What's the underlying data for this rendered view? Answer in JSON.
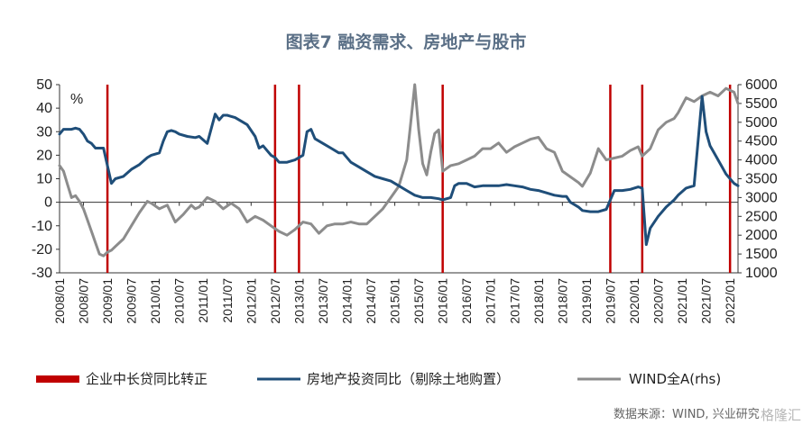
{
  "chart_data": {
    "type": "line",
    "title": "图表7  融资需求、房地产与股市",
    "y_unit": "%",
    "ylim_left": [
      -30,
      50
    ],
    "yticks_left": [
      -30,
      -20,
      -10,
      0,
      10,
      20,
      30,
      40,
      50
    ],
    "ylim_right": [
      1000,
      6000
    ],
    "yticks_right": [
      1000,
      1500,
      2000,
      2500,
      3000,
      3500,
      4000,
      4500,
      5000,
      5500,
      6000
    ],
    "x_ticks": [
      "2008/01",
      "2008/07",
      "2009/01",
      "2009/07",
      "2010/01",
      "2010/07",
      "2011/01",
      "2011/07",
      "2012/01",
      "2012/07",
      "2013/01",
      "2013/07",
      "2014/01",
      "2014/07",
      "2015/01",
      "2015/07",
      "2016/01",
      "2016/07",
      "2017/01",
      "2017/07",
      "2018/01",
      "2018/07",
      "2019/01",
      "2019/07",
      "2020/01",
      "2020/07",
      "2021/01",
      "2021/07",
      "2022/01"
    ],
    "grid": false,
    "legend_position": "bottom",
    "turn_positive_markers": {
      "name": "企业中长贷同比转正",
      "color": "#c00000",
      "dates": [
        "2009/01",
        "2012/07",
        "2013/01",
        "2016/01",
        "2019/07",
        "2020/03",
        "2022/01"
      ]
    },
    "series": [
      {
        "name": "房地产投资同比（剔除土地购置）",
        "axis": "left",
        "color": "#1f4e79",
        "points": [
          [
            "2008/01",
            29
          ],
          [
            "2008/02",
            31
          ],
          [
            "2008/03",
            31
          ],
          [
            "2008/04",
            31
          ],
          [
            "2008/05",
            31.5
          ],
          [
            "2008/06",
            31
          ],
          [
            "2008/07",
            29
          ],
          [
            "2008/08",
            26
          ],
          [
            "2008/09",
            25
          ],
          [
            "2008/10",
            23
          ],
          [
            "2008/11",
            23
          ],
          [
            "2008/12",
            23
          ],
          [
            "2009/02",
            8
          ],
          [
            "2009/03",
            10
          ],
          [
            "2009/05",
            11
          ],
          [
            "2009/07",
            14
          ],
          [
            "2009/09",
            16
          ],
          [
            "2009/11",
            19
          ],
          [
            "2009/12",
            20
          ],
          [
            "2010/02",
            21
          ],
          [
            "2010/03",
            26
          ],
          [
            "2010/04",
            30
          ],
          [
            "2010/05",
            30.5
          ],
          [
            "2010/06",
            30
          ],
          [
            "2010/07",
            29
          ],
          [
            "2010/09",
            28
          ],
          [
            "2010/11",
            27.5
          ],
          [
            "2010/12",
            28
          ],
          [
            "2011/02",
            25
          ],
          [
            "2011/04",
            37.5
          ],
          [
            "2011/05",
            35
          ],
          [
            "2011/06",
            37
          ],
          [
            "2011/07",
            37
          ],
          [
            "2011/09",
            36
          ],
          [
            "2011/11",
            34
          ],
          [
            "2011/12",
            33
          ],
          [
            "2012/02",
            28
          ],
          [
            "2012/03",
            23
          ],
          [
            "2012/04",
            24
          ],
          [
            "2012/05",
            22
          ],
          [
            "2012/06",
            20
          ],
          [
            "2012/07",
            19
          ],
          [
            "2012/08",
            17
          ],
          [
            "2012/10",
            17
          ],
          [
            "2012/12",
            18
          ],
          [
            "2013/02",
            20
          ],
          [
            "2013/03",
            30
          ],
          [
            "2013/04",
            31
          ],
          [
            "2013/05",
            27
          ],
          [
            "2013/07",
            25
          ],
          [
            "2013/09",
            23
          ],
          [
            "2013/11",
            21
          ],
          [
            "2013/12",
            21
          ],
          [
            "2014/02",
            17
          ],
          [
            "2014/04",
            15
          ],
          [
            "2014/06",
            13
          ],
          [
            "2014/08",
            11
          ],
          [
            "2014/10",
            10
          ],
          [
            "2014/12",
            9
          ],
          [
            "2015/02",
            7
          ],
          [
            "2015/04",
            5
          ],
          [
            "2015/06",
            3
          ],
          [
            "2015/08",
            2
          ],
          [
            "2015/10",
            2
          ],
          [
            "2015/12",
            1.5
          ],
          [
            "2016/01",
            1
          ],
          [
            "2016/03",
            2
          ],
          [
            "2016/04",
            7
          ],
          [
            "2016/05",
            8
          ],
          [
            "2016/07",
            8
          ],
          [
            "2016/09",
            6.5
          ],
          [
            "2016/11",
            7
          ],
          [
            "2017/01",
            7
          ],
          [
            "2017/03",
            7
          ],
          [
            "2017/05",
            7.5
          ],
          [
            "2017/07",
            7
          ],
          [
            "2017/09",
            6.5
          ],
          [
            "2017/11",
            5.5
          ],
          [
            "2018/01",
            5
          ],
          [
            "2018/03",
            4
          ],
          [
            "2018/05",
            3
          ],
          [
            "2018/07",
            2.5
          ],
          [
            "2018/08",
            2.5
          ],
          [
            "2018/09",
            0
          ],
          [
            "2018/11",
            -2
          ],
          [
            "2018/12",
            -3.5
          ],
          [
            "2019/02",
            -4
          ],
          [
            "2019/04",
            -4
          ],
          [
            "2019/06",
            -3
          ],
          [
            "2019/08",
            5
          ],
          [
            "2019/10",
            5
          ],
          [
            "2019/12",
            5.5
          ],
          [
            "2020/02",
            6.5
          ],
          [
            "2020/03",
            6
          ],
          [
            "2020/04",
            -18
          ],
          [
            "2020/05",
            -11
          ],
          [
            "2020/07",
            -6
          ],
          [
            "2020/09",
            -2
          ],
          [
            "2020/11",
            1
          ],
          [
            "2020/12",
            3
          ],
          [
            "2021/02",
            6
          ],
          [
            "2021/04",
            7
          ],
          [
            "2021/06",
            45
          ],
          [
            "2021/07",
            30
          ],
          [
            "2021/08",
            24
          ],
          [
            "2021/09",
            21
          ],
          [
            "2021/11",
            15
          ],
          [
            "2021/12",
            12
          ],
          [
            "2022/02",
            8
          ],
          [
            "2022/03",
            7
          ]
        ]
      },
      {
        "name": "WIND全A(rhs)",
        "axis": "right",
        "color": "#8c8c8c",
        "points": [
          [
            "2008/01",
            3850
          ],
          [
            "2008/02",
            3700
          ],
          [
            "2008/03",
            3350
          ],
          [
            "2008/04",
            3000
          ],
          [
            "2008/05",
            3050
          ],
          [
            "2008/06",
            2900
          ],
          [
            "2008/07",
            2700
          ],
          [
            "2008/08",
            2400
          ],
          [
            "2008/09",
            2100
          ],
          [
            "2008/10",
            1800
          ],
          [
            "2008/11",
            1500
          ],
          [
            "2008/12",
            1450
          ],
          [
            "2009/01",
            1550
          ],
          [
            "2009/02",
            1600
          ],
          [
            "2009/03",
            1700
          ],
          [
            "2009/05",
            1900
          ],
          [
            "2009/07",
            2250
          ],
          [
            "2009/09",
            2600
          ],
          [
            "2009/11",
            2900
          ],
          [
            "2009/12",
            2850
          ],
          [
            "2010/02",
            2700
          ],
          [
            "2010/04",
            2800
          ],
          [
            "2010/06",
            2350
          ],
          [
            "2010/08",
            2550
          ],
          [
            "2010/10",
            2800
          ],
          [
            "2010/11",
            2700
          ],
          [
            "2010/12",
            2750
          ],
          [
            "2011/02",
            3000
          ],
          [
            "2011/04",
            2900
          ],
          [
            "2011/06",
            2700
          ],
          [
            "2011/08",
            2850
          ],
          [
            "2011/10",
            2700
          ],
          [
            "2011/12",
            2350
          ],
          [
            "2012/02",
            2500
          ],
          [
            "2012/04",
            2400
          ],
          [
            "2012/06",
            2250
          ],
          [
            "2012/08",
            2100
          ],
          [
            "2012/10",
            2000
          ],
          [
            "2012/12",
            2150
          ],
          [
            "2013/02",
            2350
          ],
          [
            "2013/04",
            2300
          ],
          [
            "2013/06",
            2050
          ],
          [
            "2013/08",
            2250
          ],
          [
            "2013/10",
            2300
          ],
          [
            "2013/12",
            2300
          ],
          [
            "2014/02",
            2350
          ],
          [
            "2014/04",
            2300
          ],
          [
            "2014/06",
            2300
          ],
          [
            "2014/08",
            2500
          ],
          [
            "2014/10",
            2700
          ],
          [
            "2014/12",
            3000
          ],
          [
            "2015/02",
            3300
          ],
          [
            "2015/04",
            4000
          ],
          [
            "2015/05",
            5000
          ],
          [
            "2015/06",
            6000
          ],
          [
            "2015/07",
            4800
          ],
          [
            "2015/08",
            3900
          ],
          [
            "2015/09",
            3600
          ],
          [
            "2015/10",
            4200
          ],
          [
            "2015/11",
            4700
          ],
          [
            "2015/12",
            4800
          ],
          [
            "2016/01",
            3700
          ],
          [
            "2016/03",
            3850
          ],
          [
            "2016/05",
            3900
          ],
          [
            "2016/07",
            4000
          ],
          [
            "2016/09",
            4100
          ],
          [
            "2016/11",
            4300
          ],
          [
            "2017/01",
            4300
          ],
          [
            "2017/03",
            4450
          ],
          [
            "2017/05",
            4200
          ],
          [
            "2017/07",
            4350
          ],
          [
            "2017/09",
            4450
          ],
          [
            "2017/11",
            4550
          ],
          [
            "2018/01",
            4600
          ],
          [
            "2018/03",
            4300
          ],
          [
            "2018/05",
            4200
          ],
          [
            "2018/07",
            3700
          ],
          [
            "2018/09",
            3550
          ],
          [
            "2018/11",
            3400
          ],
          [
            "2018/12",
            3300
          ],
          [
            "2019/02",
            3650
          ],
          [
            "2019/04",
            4300
          ],
          [
            "2019/06",
            4000
          ],
          [
            "2019/08",
            4050
          ],
          [
            "2019/10",
            4100
          ],
          [
            "2019/12",
            4250
          ],
          [
            "2020/02",
            4350
          ],
          [
            "2020/03",
            4100
          ],
          [
            "2020/05",
            4300
          ],
          [
            "2020/07",
            4800
          ],
          [
            "2020/09",
            5000
          ],
          [
            "2020/11",
            5100
          ],
          [
            "2020/12",
            5250
          ],
          [
            "2021/02",
            5650
          ],
          [
            "2021/04",
            5550
          ],
          [
            "2021/06",
            5700
          ],
          [
            "2021/08",
            5800
          ],
          [
            "2021/10",
            5700
          ],
          [
            "2021/12",
            5900
          ],
          [
            "2022/02",
            5800
          ],
          [
            "2022/03",
            5500
          ]
        ]
      }
    ]
  },
  "legend": {
    "item1": "企业中长贷同比转正",
    "item2": "房地产投资同比（剔除土地购置）",
    "item3": "WIND全A(rhs)"
  },
  "source_text": "数据来源：WIND, 兴业研究",
  "watermark_text": "格隆汇"
}
